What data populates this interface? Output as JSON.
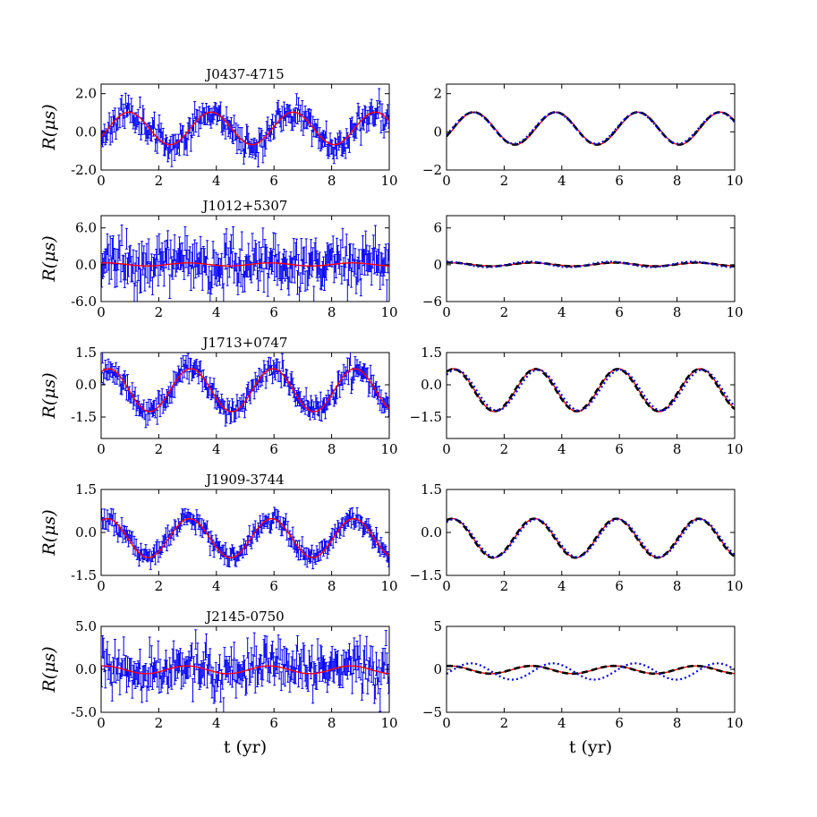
{
  "chart_data": [
    {
      "id": "j0437-obs",
      "type": "line",
      "title": "J0437-4715",
      "ylabel": "R(μs)",
      "xlabel": "",
      "xlim": [
        0,
        10
      ],
      "ylim": [
        -2.0,
        2.5
      ],
      "xticks": [
        0,
        2,
        4,
        6,
        8,
        10
      ],
      "yticks": [
        {
          "v": 2.0,
          "label": "2.0"
        },
        {
          "v": 0.0,
          "label": "0.0"
        },
        {
          "v": -2.0,
          "label": "-2.0"
        }
      ],
      "noisy": {
        "name": "observed",
        "color": "#0000ff",
        "amp": 0.9,
        "noise": 0.35,
        "err": 0.45,
        "n": 300,
        "seed": 11
      },
      "series": [
        {
          "name": "model",
          "color": "#ff0000",
          "style": "solid",
          "amp": 0.85,
          "offset": 0.18,
          "period": 2.85,
          "phase": -0.55
        }
      ]
    },
    {
      "id": "j0437-model",
      "type": "line",
      "title": "",
      "xlabel": "",
      "xlim": [
        0,
        10
      ],
      "ylim": [
        -2,
        2.5
      ],
      "xticks": [
        0,
        2,
        4,
        6,
        8,
        10
      ],
      "yticks": [
        {
          "v": 2,
          "label": "2"
        },
        {
          "v": 0,
          "label": "0"
        },
        {
          "v": -2,
          "label": "−2"
        }
      ],
      "series": [
        {
          "name": "model",
          "color": "#ff0000",
          "style": "solid",
          "amp": 0.85,
          "offset": 0.18,
          "period": 2.85,
          "phase": -0.55
        },
        {
          "name": "dashed",
          "color": "#000000",
          "style": "dashed",
          "amp": 0.85,
          "offset": 0.18,
          "period": 2.85,
          "phase": -0.5
        },
        {
          "name": "dotted",
          "color": "#0000ff",
          "style": "dotted",
          "amp": 0.82,
          "offset": 0.2,
          "period": 2.85,
          "phase": -0.45
        }
      ]
    },
    {
      "id": "j1012-obs",
      "type": "line",
      "title": "J1012+5307",
      "ylabel": "R(μs)",
      "xlabel": "",
      "xlim": [
        0,
        10
      ],
      "ylim": [
        -6.0,
        8.0
      ],
      "xticks": [
        0,
        2,
        4,
        6,
        8,
        10
      ],
      "yticks": [
        {
          "v": 6.0,
          "label": "6.0"
        },
        {
          "v": 0.0,
          "label": "0.0"
        },
        {
          "v": -6.0,
          "label": "-6.0"
        }
      ],
      "noisy": {
        "name": "observed",
        "color": "#0000ff",
        "amp": 0.25,
        "noise": 1.9,
        "err": 2.2,
        "n": 300,
        "seed": 23
      },
      "series": [
        {
          "name": "model",
          "color": "#ff0000",
          "style": "solid",
          "amp": 0.25,
          "offset": 0.05,
          "period": 2.85,
          "phase": 1.2
        }
      ]
    },
    {
      "id": "j1012-model",
      "type": "line",
      "title": "",
      "xlabel": "",
      "xlim": [
        0,
        10
      ],
      "ylim": [
        -6,
        8
      ],
      "xticks": [
        0,
        2,
        4,
        6,
        8,
        10
      ],
      "yticks": [
        {
          "v": 6,
          "label": "6"
        },
        {
          "v": 0,
          "label": "0"
        },
        {
          "v": -6,
          "label": "−6"
        }
      ],
      "series": [
        {
          "name": "model",
          "color": "#ff0000",
          "style": "solid",
          "amp": 0.25,
          "offset": 0.05,
          "period": 2.85,
          "phase": 1.2
        },
        {
          "name": "dashed",
          "color": "#000000",
          "style": "dashed",
          "amp": 0.3,
          "offset": 0.05,
          "period": 2.85,
          "phase": 1.3
        },
        {
          "name": "dotted",
          "color": "#0000ff",
          "style": "dotted",
          "amp": 0.45,
          "offset": 0.05,
          "period": 2.85,
          "phase": 1.6
        }
      ]
    },
    {
      "id": "j1713-obs",
      "type": "line",
      "title": "J1713+0747",
      "ylabel": "R(μs)",
      "xlabel": "",
      "xlim": [
        0,
        10
      ],
      "ylim": [
        -2.5,
        1.5
      ],
      "xticks": [
        0,
        2,
        4,
        6,
        8,
        10
      ],
      "yticks": [
        {
          "v": 1.5,
          "label": "1.5"
        },
        {
          "v": 0.0,
          "label": "0.0"
        },
        {
          "v": -1.5,
          "label": "-1.5"
        }
      ],
      "noisy": {
        "name": "observed",
        "color": "#0000ff",
        "amp": 1.0,
        "noise": 0.25,
        "err": 0.35,
        "n": 300,
        "seed": 37
      },
      "series": [
        {
          "name": "model",
          "color": "#ff0000",
          "style": "solid",
          "amp": 1.0,
          "offset": -0.25,
          "period": 2.85,
          "phase": 1.0
        }
      ]
    },
    {
      "id": "j1713-model",
      "type": "line",
      "title": "",
      "xlabel": "",
      "xlim": [
        0,
        10
      ],
      "ylim": [
        -2.5,
        1.5
      ],
      "xticks": [
        0,
        2,
        4,
        6,
        8,
        10
      ],
      "yticks": [
        {
          "v": 1.5,
          "label": "1.5"
        },
        {
          "v": 0.0,
          "label": "0.0"
        },
        {
          "v": -1.5,
          "label": "−1.5"
        }
      ],
      "series": [
        {
          "name": "model",
          "color": "#ff0000",
          "style": "solid",
          "amp": 1.0,
          "offset": -0.25,
          "period": 2.85,
          "phase": 1.0
        },
        {
          "name": "dashed",
          "color": "#000000",
          "style": "dashed",
          "amp": 0.98,
          "offset": -0.25,
          "period": 2.85,
          "phase": 1.05
        },
        {
          "name": "dotted",
          "color": "#0000ff",
          "style": "dotted",
          "amp": 0.95,
          "offset": -0.25,
          "period": 2.85,
          "phase": 0.85
        }
      ]
    },
    {
      "id": "j1909-obs",
      "type": "line",
      "title": "J1909-3744",
      "ylabel": "R(μs)",
      "xlabel": "",
      "xlim": [
        0,
        10
      ],
      "ylim": [
        -1.5,
        1.5
      ],
      "xticks": [
        0,
        2,
        4,
        6,
        8,
        10
      ],
      "yticks": [
        {
          "v": 1.5,
          "label": "1.5"
        },
        {
          "v": 0.0,
          "label": "0.0"
        },
        {
          "v": -1.5,
          "label": "-1.5"
        }
      ],
      "noisy": {
        "name": "observed",
        "color": "#0000ff",
        "amp": 0.68,
        "noise": 0.15,
        "err": 0.22,
        "n": 300,
        "seed": 51
      },
      "series": [
        {
          "name": "model",
          "color": "#ff0000",
          "style": "solid",
          "amp": 0.68,
          "offset": -0.2,
          "period": 2.85,
          "phase": 1.1
        }
      ]
    },
    {
      "id": "j1909-model",
      "type": "line",
      "title": "",
      "xlabel": "",
      "xlim": [
        0,
        10
      ],
      "ylim": [
        -1.5,
        1.5
      ],
      "xticks": [
        0,
        2,
        4,
        6,
        8,
        10
      ],
      "yticks": [
        {
          "v": 1.5,
          "label": "1.5"
        },
        {
          "v": 0.0,
          "label": "0.0"
        },
        {
          "v": -1.5,
          "label": "−1.5"
        }
      ],
      "series": [
        {
          "name": "model",
          "color": "#ff0000",
          "style": "solid",
          "amp": 0.68,
          "offset": -0.2,
          "period": 2.85,
          "phase": 1.1
        },
        {
          "name": "dashed",
          "color": "#000000",
          "style": "dashed",
          "amp": 0.68,
          "offset": -0.2,
          "period": 2.85,
          "phase": 1.15
        },
        {
          "name": "dotted",
          "color": "#0000ff",
          "style": "dotted",
          "amp": 0.66,
          "offset": -0.2,
          "period": 2.85,
          "phase": 1.0
        }
      ]
    },
    {
      "id": "j2145-obs",
      "type": "line",
      "title": "J2145-0750",
      "ylabel": "R(μs)",
      "xlabel": "t (yr)",
      "xlim": [
        0,
        10
      ],
      "ylim": [
        -5.0,
        5.0
      ],
      "xticks": [
        0,
        2,
        4,
        6,
        8,
        10
      ],
      "yticks": [
        {
          "v": 5.0,
          "label": "5.0"
        },
        {
          "v": 0.0,
          "label": "0.0"
        },
        {
          "v": -5.0,
          "label": "-5.0"
        }
      ],
      "noisy": {
        "name": "observed",
        "color": "#0000ff",
        "amp": 0.45,
        "noise": 1.2,
        "err": 1.4,
        "n": 300,
        "seed": 67
      },
      "series": [
        {
          "name": "model",
          "color": "#ff0000",
          "style": "solid",
          "amp": 0.45,
          "offset": -0.05,
          "period": 2.85,
          "phase": 1.3
        }
      ]
    },
    {
      "id": "j2145-model",
      "type": "line",
      "title": "",
      "xlabel": "t (yr)",
      "xlim": [
        0,
        10
      ],
      "ylim": [
        -5,
        5
      ],
      "xticks": [
        0,
        2,
        4,
        6,
        8,
        10
      ],
      "yticks": [
        {
          "v": 5,
          "label": "5"
        },
        {
          "v": 0,
          "label": "0"
        },
        {
          "v": -5,
          "label": "−5"
        }
      ],
      "series": [
        {
          "name": "model",
          "color": "#ff0000",
          "style": "solid",
          "amp": 0.45,
          "offset": -0.05,
          "period": 2.85,
          "phase": 1.3
        },
        {
          "name": "dashed",
          "color": "#000000",
          "style": "dashed",
          "amp": 0.45,
          "offset": -0.05,
          "period": 2.85,
          "phase": 1.35
        },
        {
          "name": "dotted",
          "color": "#0000ff",
          "style": "dotted",
          "amp": 0.95,
          "offset": -0.25,
          "period": 2.85,
          "phase": -0.3
        }
      ]
    }
  ]
}
